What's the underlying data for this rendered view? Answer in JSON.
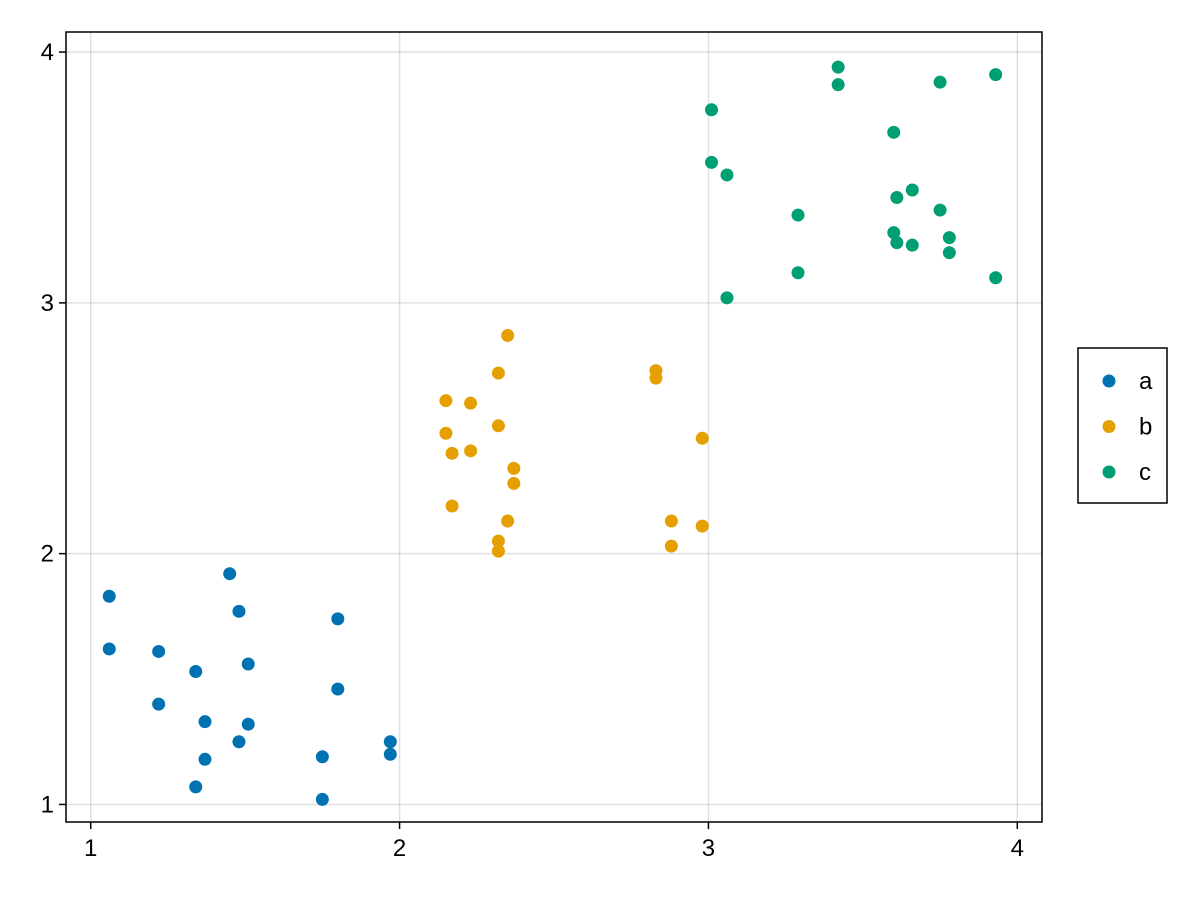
{
  "chart_data": {
    "type": "scatter",
    "title": "",
    "xlabel": "",
    "ylabel": "",
    "xlim": [
      0.92,
      4.08
    ],
    "ylim": [
      0.93,
      4.08
    ],
    "xticks": [
      1,
      2,
      3,
      4
    ],
    "yticks": [
      1,
      2,
      3,
      4
    ],
    "grid": true,
    "legend_position": "right",
    "series": [
      {
        "name": "a",
        "color": "#0072b2",
        "points": [
          [
            1.06,
            1.83
          ],
          [
            1.06,
            1.62
          ],
          [
            1.22,
            1.61
          ],
          [
            1.22,
            1.4
          ],
          [
            1.34,
            1.53
          ],
          [
            1.34,
            1.07
          ],
          [
            1.37,
            1.33
          ],
          [
            1.37,
            1.18
          ],
          [
            1.45,
            1.92
          ],
          [
            1.48,
            1.77
          ],
          [
            1.48,
            1.25
          ],
          [
            1.51,
            1.56
          ],
          [
            1.51,
            1.32
          ],
          [
            1.75,
            1.19
          ],
          [
            1.75,
            1.02
          ],
          [
            1.8,
            1.74
          ],
          [
            1.8,
            1.46
          ],
          [
            1.97,
            1.25
          ],
          [
            1.97,
            1.2
          ]
        ]
      },
      {
        "name": "b",
        "color": "#e69f00",
        "points": [
          [
            2.15,
            2.61
          ],
          [
            2.15,
            2.48
          ],
          [
            2.17,
            2.4
          ],
          [
            2.17,
            2.19
          ],
          [
            2.23,
            2.6
          ],
          [
            2.23,
            2.41
          ],
          [
            2.32,
            2.72
          ],
          [
            2.32,
            2.51
          ],
          [
            2.32,
            2.05
          ],
          [
            2.32,
            2.01
          ],
          [
            2.35,
            2.87
          ],
          [
            2.35,
            2.13
          ],
          [
            2.37,
            2.34
          ],
          [
            2.37,
            2.28
          ],
          [
            2.83,
            2.73
          ],
          [
            2.83,
            2.7
          ],
          [
            2.88,
            2.13
          ],
          [
            2.88,
            2.03
          ],
          [
            2.98,
            2.46
          ],
          [
            2.98,
            2.11
          ]
        ]
      },
      {
        "name": "c",
        "color": "#009e73",
        "points": [
          [
            3.01,
            3.77
          ],
          [
            3.01,
            3.56
          ],
          [
            3.06,
            3.51
          ],
          [
            3.06,
            3.02
          ],
          [
            3.29,
            3.35
          ],
          [
            3.29,
            3.12
          ],
          [
            3.42,
            3.94
          ],
          [
            3.42,
            3.87
          ],
          [
            3.6,
            3.68
          ],
          [
            3.61,
            3.42
          ],
          [
            3.6,
            3.28
          ],
          [
            3.61,
            3.24
          ],
          [
            3.66,
            3.45
          ],
          [
            3.66,
            3.23
          ],
          [
            3.75,
            3.88
          ],
          [
            3.75,
            3.37
          ],
          [
            3.78,
            3.26
          ],
          [
            3.78,
            3.2
          ],
          [
            3.93,
            3.91
          ],
          [
            3.93,
            3.1
          ]
        ]
      }
    ]
  }
}
